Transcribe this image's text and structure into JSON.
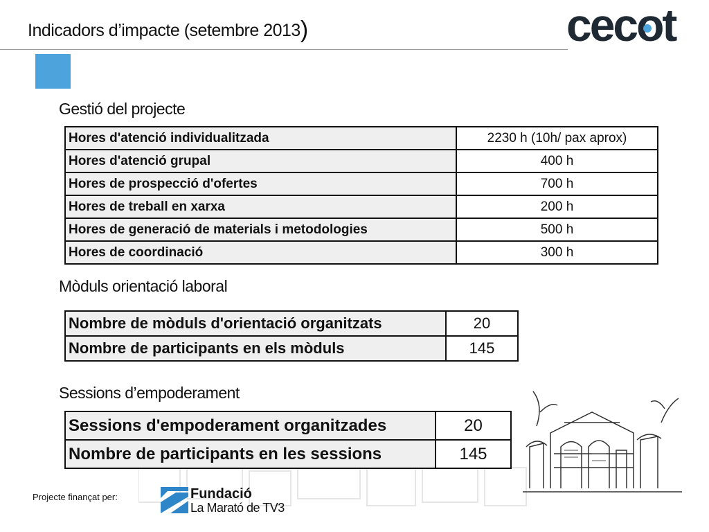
{
  "header": {
    "title": "Indicadors d’impacte (setembre 2013",
    "title_paren": ")",
    "logo_text": "cecot"
  },
  "sections": {
    "gestio": {
      "heading": "Gestió del projecte",
      "rows": [
        {
          "label": "Hores d'atenció individualitzada",
          "value": "2230 h (10h/ pax aprox)"
        },
        {
          "label": "Hores d'atenció grupal",
          "value": "400 h"
        },
        {
          "label": "Hores de prospecció d'ofertes",
          "value": "700 h"
        },
        {
          "label": "Hores de treball en xarxa",
          "value": "200 h"
        },
        {
          "label": "Hores de generació de materials i metodologies",
          "value": "500 h"
        },
        {
          "label": "Hores de coordinació",
          "value": "300 h"
        }
      ]
    },
    "moduls": {
      "heading": "Mòduls orientació laboral",
      "rows": [
        {
          "label": "Nombre de mòduls d'orientació organitzats",
          "value": "20"
        },
        {
          "label": "Nombre de participants en els mòduls",
          "value": "145"
        }
      ]
    },
    "sessions": {
      "heading": "Sessions d’empoderament",
      "rows": [
        {
          "label": "Sessions d'empoderament organitzades",
          "value": "20"
        },
        {
          "label": "Nombre de participants en les sessions",
          "value": "145"
        }
      ]
    }
  },
  "footer": {
    "funded_label": "Projecte finançat per:",
    "fundacio_line1": "Fundació",
    "fundacio_line2": "La Marató de TV3"
  },
  "colors": {
    "accent_blue": "#4da3dc",
    "logo_dark": "#1f2933",
    "table_label_bg": "#efefef"
  }
}
